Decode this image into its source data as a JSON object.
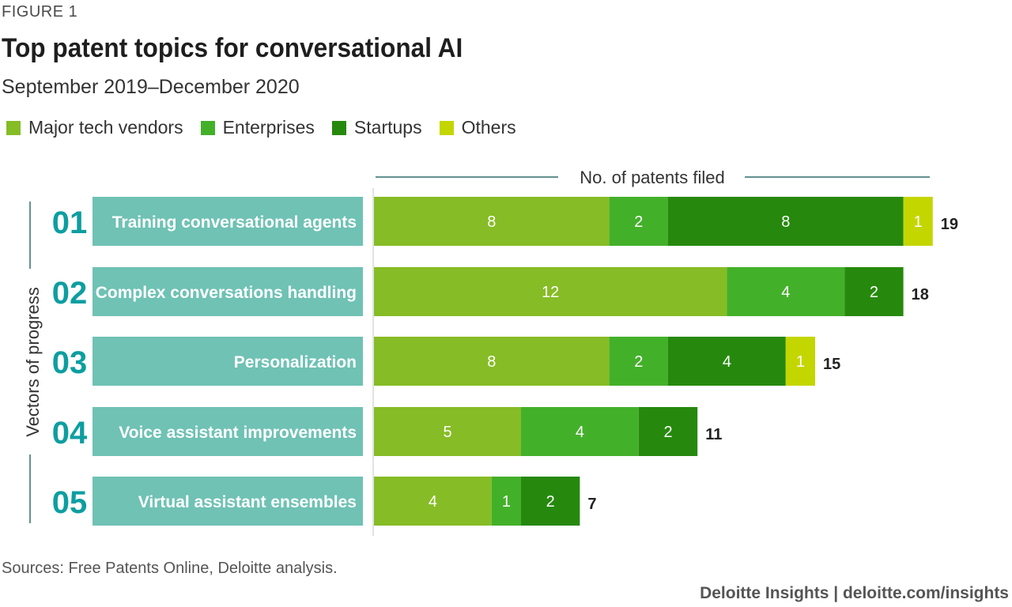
{
  "figure_label": "FIGURE 1",
  "title": "Top patent topics for conversational AI",
  "subtitle": "September 2019–December 2020",
  "axis_caption": "No. of patents filed",
  "side_label": "Vectors of progress",
  "source": "Sources: Free Patents Online, Deloitte analysis.",
  "brand": "Deloitte Insights | deloitte.com/insights",
  "colors": {
    "major": "#86bc25",
    "enterprises": "#43b02a",
    "startups": "#26890d",
    "others": "#c4d600",
    "label_bg": "#6fc2b4",
    "number": "#0d9ea0"
  },
  "chart_data": {
    "type": "bar",
    "orientation": "horizontal",
    "stacked": true,
    "legend_position": "top-left",
    "xlabel": "No. of patents filed",
    "xlim": [
      0,
      19
    ],
    "categories": [
      "Training conversational agents",
      "Complex conversations handling",
      "Personalization",
      "Voice assistant improvements",
      "Virtual assistant ensembles"
    ],
    "category_numbers": [
      "01",
      "02",
      "03",
      "04",
      "05"
    ],
    "series": [
      {
        "name": "Major tech vendors",
        "color": "#86bc25",
        "values": [
          8,
          12,
          8,
          5,
          4
        ]
      },
      {
        "name": "Enterprises",
        "color": "#43b02a",
        "values": [
          2,
          4,
          2,
          4,
          1
        ]
      },
      {
        "name": "Startups",
        "color": "#26890d",
        "values": [
          8,
          2,
          4,
          2,
          2
        ]
      },
      {
        "name": "Others",
        "color": "#c4d600",
        "values": [
          1,
          0,
          1,
          0,
          0
        ]
      }
    ],
    "totals": [
      19,
      18,
      15,
      11,
      7
    ]
  }
}
